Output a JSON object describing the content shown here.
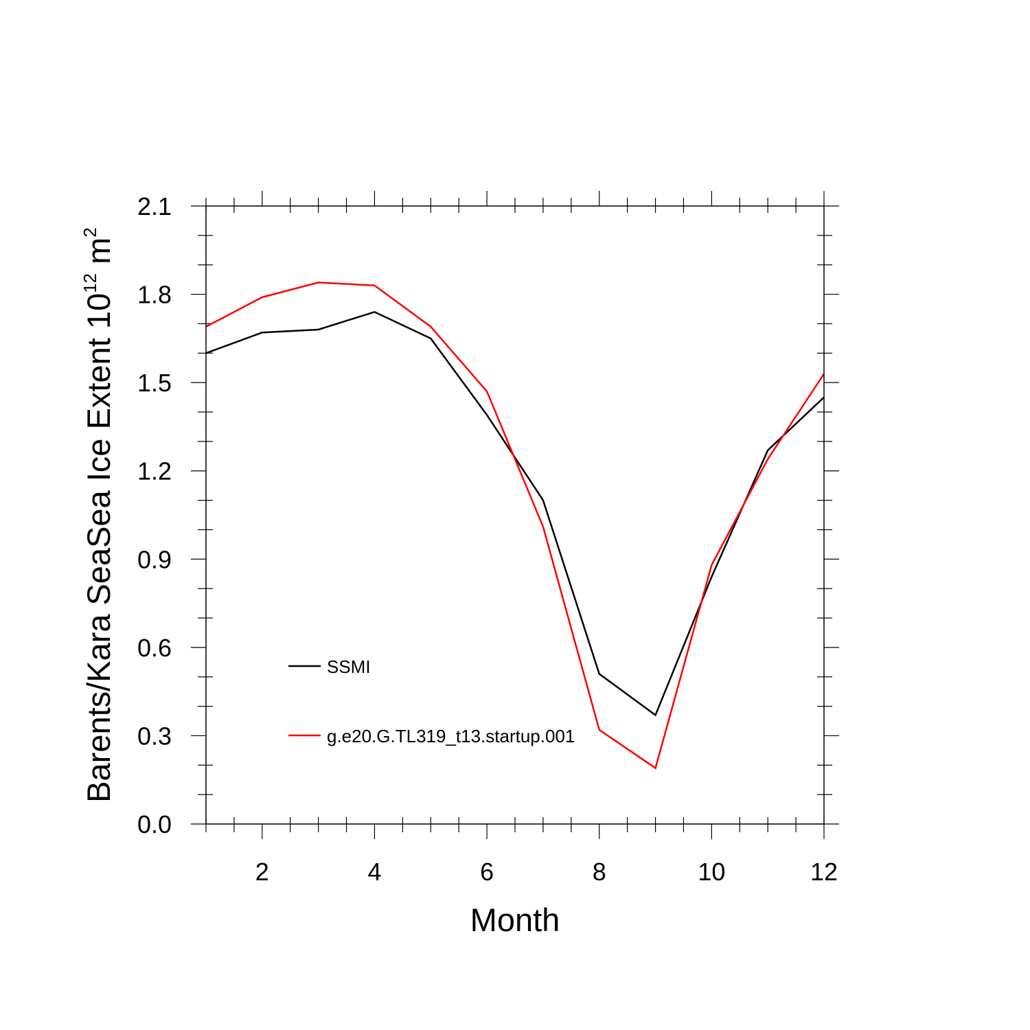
{
  "chart_data": {
    "type": "line",
    "title": "",
    "xlabel": "Month",
    "ylabel": {
      "prefix": "Barents/Kara SeaSea Ice Extent 10",
      "exponent": "12",
      "unit": " m",
      "unit_exponent": "2"
    },
    "xlim": [
      1,
      12
    ],
    "ylim": [
      0.0,
      2.1
    ],
    "x_ticks": [
      2,
      4,
      6,
      8,
      10,
      12
    ],
    "x_tick_labels": [
      "2",
      "4",
      "6",
      "8",
      "10",
      "12"
    ],
    "y_ticks": [
      0.0,
      0.3,
      0.6,
      0.9,
      1.2,
      1.5,
      1.8,
      2.1
    ],
    "y_tick_labels": [
      "0.0",
      "0.3",
      "0.6",
      "0.9",
      "1.2",
      "1.5",
      "1.8",
      "2.1"
    ],
    "grid": false,
    "legend_placement": "inside, lower-left",
    "x": [
      1,
      2,
      3,
      4,
      5,
      6,
      7,
      8,
      9,
      10,
      11,
      12
    ],
    "series": [
      {
        "name": "SSMI",
        "color": "#000000",
        "values": [
          1.6,
          1.67,
          1.68,
          1.74,
          1.65,
          1.39,
          1.1,
          0.51,
          0.37,
          0.84,
          1.27,
          1.45
        ]
      },
      {
        "name": "g.e20.G.TL319_t13.startup.001",
        "color": "#ff0000",
        "values": [
          1.69,
          1.79,
          1.84,
          1.83,
          1.69,
          1.47,
          1.01,
          0.32,
          0.19,
          0.88,
          1.24,
          1.53
        ]
      }
    ]
  }
}
